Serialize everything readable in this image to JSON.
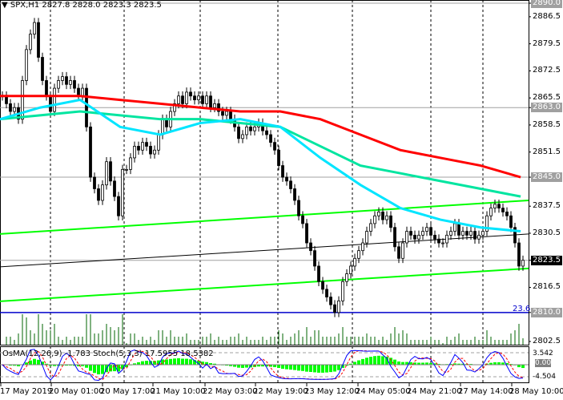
{
  "header": {
    "symbol": "SPX,H1",
    "ohlc": "2827.8 2828.0 2823.3 2823.5"
  },
  "price_axis": {
    "ticks": [
      "2890.0",
      "2886.5",
      "2879.5",
      "2872.5",
      "2865.5",
      "2863.0",
      "2858.5",
      "2851.5",
      "2845.0",
      "2837.5",
      "2830.5",
      "2823.5",
      "2816.5",
      "2810.0",
      "2802.5"
    ],
    "tagged": [
      "2890.0",
      "2863.0",
      "2845.0",
      "2810.0"
    ],
    "current": "2823.5"
  },
  "fib_label": "23.6",
  "indicator": {
    "label": "OsMA(12,26,9) -1.783  Stoch(5,3,3) 17.5955 18.5382",
    "ticks": [
      "3.542",
      "80",
      "0.00",
      "20",
      "-4.504"
    ]
  },
  "time_axis": [
    "17 May 2019",
    "20 May 01:00",
    "20 May 17:00",
    "21 May 10:00",
    "22 May 03:00",
    "22 May 19:00",
    "23 May 12:00",
    "24 May 05:00",
    "24 May 21:00",
    "27 May 14:00",
    "28 May 10:00"
  ],
  "colors": {
    "ma200": "#ff0000",
    "ma144": "#00e5a0",
    "ma50": "#00e5ff",
    "channel": "#00ff00",
    "fib": "#0000cc",
    "osma": "#00ff00",
    "stoch_main": "#0000ff",
    "stoch_signal": "#ff0000"
  },
  "chart_data": {
    "type": "candlestick",
    "ylim": [
      2802.5,
      2890.0
    ],
    "closes": [
      2866,
      2864,
      2862,
      2863,
      2860,
      2870,
      2878,
      2882,
      2885,
      2876,
      2870,
      2866,
      2862,
      2868,
      2870,
      2871,
      2869,
      2870,
      2868,
      2866,
      2868,
      2858,
      2845,
      2842,
      2839,
      2843,
      2849,
      2844,
      2840,
      2835,
      2847,
      2847,
      2850,
      2853,
      2852,
      2854,
      2853,
      2851,
      2852,
      2856,
      2860,
      2858,
      2862,
      2864,
      2866,
      2864,
      2867,
      2866,
      2865,
      2866,
      2864,
      2866,
      2863,
      2864,
      2862,
      2861,
      2862,
      2860,
      2858,
      2855,
      2856,
      2858,
      2857,
      2858,
      2859,
      2857,
      2856,
      2854,
      2852,
      2848,
      2845,
      2844,
      2842,
      2839,
      2835,
      2833,
      2828,
      2826,
      2822,
      2818,
      2816,
      2814,
      2812,
      2810,
      2813,
      2818,
      2820,
      2822,
      2824,
      2826,
      2828,
      2831,
      2833,
      2835,
      2836,
      2834,
      2835,
      2832,
      2827,
      2824,
      2828,
      2831,
      2830,
      2829,
      2830,
      2831,
      2832,
      2830,
      2829,
      2828,
      2828,
      2830,
      2831,
      2833,
      2830,
      2831,
      2830,
      2831,
      2829,
      2830,
      2831,
      2835,
      2837,
      2838,
      2837,
      2836,
      2835,
      2832,
      2828,
      2822,
      2823.5
    ],
    "ma200": [
      2866,
      2866,
      2866,
      2865,
      2864,
      2863,
      2862,
      2862,
      2860,
      2856,
      2852,
      2850,
      2848,
      2845
    ],
    "ma144": [
      2860,
      2861,
      2862,
      2861,
      2860,
      2860,
      2859,
      2858,
      2853,
      2848,
      2846,
      2844,
      2842,
      2840
    ],
    "ma50": [
      2860,
      2863,
      2865,
      2858,
      2856,
      2859,
      2860,
      2858,
      2850,
      2843,
      2837,
      2834,
      2832,
      2831
    ],
    "channel_upper": [
      2830.3,
      2839.0
    ],
    "channel_middle": [
      2821.8,
      2830.3
    ],
    "channel_lower": [
      2812.9,
      2821.4
    ],
    "hlines": [
      2890.0,
      2863.0,
      2845.0,
      2823.5
    ],
    "fib_23_6": 2810.0
  }
}
